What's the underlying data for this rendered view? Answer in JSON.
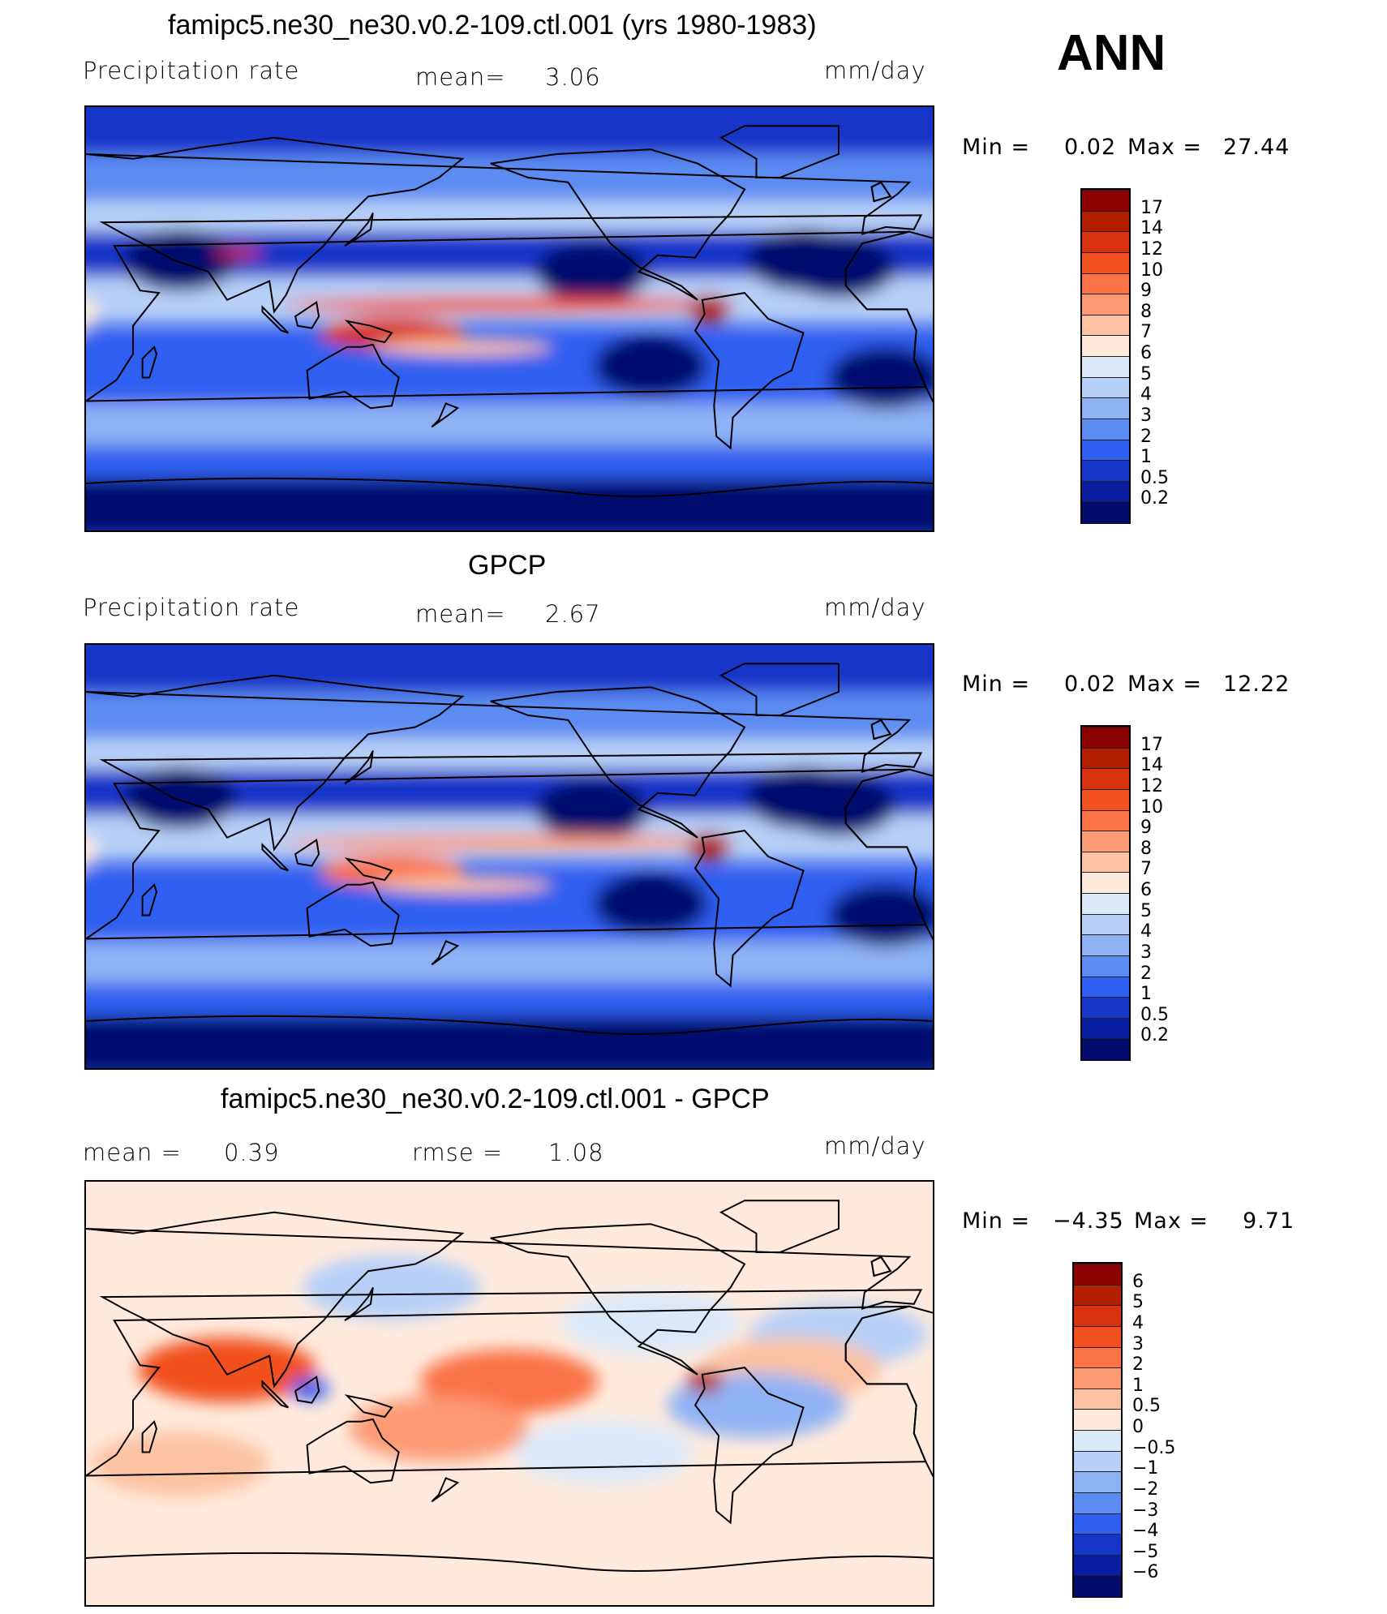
{
  "season": "ANN",
  "panels": [
    {
      "title": "famipc5.ne30_ne30.v0.2-109.ctl.001 (yrs 1980-1983)",
      "left_label": "Precipitation  rate",
      "stat1_label": "mean=",
      "stat1_value": "3.06",
      "units": "mm/day",
      "min_label": "Min  =",
      "min_value": "0.02",
      "max_label": "Max  =",
      "max_value": "27.44",
      "colorbar": [
        "17",
        "14",
        "12",
        "10",
        "9",
        "8",
        "7",
        "6",
        "5",
        "4",
        "3",
        "2",
        "1",
        "0.5",
        "0.2"
      ],
      "colors": [
        "#8b0000",
        "#b21e00",
        "#d9320f",
        "#f2501e",
        "#fa7346",
        "#fc9a73",
        "#fdc2a2",
        "#feeadd",
        "#dbe8f8",
        "#b8d0f7",
        "#8fb2f5",
        "#5c8cf2",
        "#2f5ff0",
        "#1636c9",
        "#0a1fa0",
        "#040c6e"
      ]
    },
    {
      "title": "GPCP",
      "left_label": "Precipitation  rate",
      "stat1_label": "mean=",
      "stat1_value": "2.67",
      "units": "mm/day",
      "min_label": "Min  =",
      "min_value": "0.02",
      "max_label": "Max  =",
      "max_value": "12.22",
      "colorbar": [
        "17",
        "14",
        "12",
        "10",
        "9",
        "8",
        "7",
        "6",
        "5",
        "4",
        "3",
        "2",
        "1",
        "0.5",
        "0.2"
      ],
      "colors": [
        "#8b0000",
        "#b21e00",
        "#d9320f",
        "#f2501e",
        "#fa7346",
        "#fc9a73",
        "#fdc2a2",
        "#feeadd",
        "#dbe8f8",
        "#b8d0f7",
        "#8fb2f5",
        "#5c8cf2",
        "#2f5ff0",
        "#1636c9",
        "#0a1fa0",
        "#040c6e"
      ]
    },
    {
      "title": "famipc5.ne30_ne30.v0.2-109.ctl.001 - GPCP",
      "left_label": "mean  =",
      "left_value": "0.39",
      "stat1_label": "rmse  =",
      "stat1_value": "1.08",
      "units": "mm/day",
      "min_label": "Min  =",
      "min_value": "−4.35",
      "max_label": "Max  =",
      "max_value": "9.71",
      "colorbar": [
        "6",
        "5",
        "4",
        "3",
        "2",
        "1",
        "0.5",
        "0",
        "−0.5",
        "−1",
        "−2",
        "−3",
        "−4",
        "−5",
        "−6"
      ],
      "colors": [
        "#8b0000",
        "#b21e00",
        "#d9320f",
        "#f2501e",
        "#fa7346",
        "#fc9a73",
        "#fdc2a2",
        "#feeadd",
        "#dbe8f8",
        "#b8d0f7",
        "#8fb2f5",
        "#5c8cf2",
        "#2f5ff0",
        "#1636c9",
        "#0a1fa0",
        "#040c6e"
      ]
    }
  ],
  "chart_data": [
    {
      "type": "heatmap",
      "title": "famipc5.ne30_ne30.v0.2-109.ctl.001 (yrs 1980-1983)",
      "variable": "Precipitation rate",
      "units": "mm/day",
      "mean": 3.06,
      "min": 0.02,
      "max": 27.44,
      "contour_levels": [
        0.2,
        0.5,
        1,
        2,
        3,
        4,
        5,
        6,
        7,
        8,
        9,
        10,
        12,
        14,
        17
      ]
    },
    {
      "type": "heatmap",
      "title": "GPCP",
      "variable": "Precipitation rate",
      "units": "mm/day",
      "mean": 2.67,
      "min": 0.02,
      "max": 12.22,
      "contour_levels": [
        0.2,
        0.5,
        1,
        2,
        3,
        4,
        5,
        6,
        7,
        8,
        9,
        10,
        12,
        14,
        17
      ]
    },
    {
      "type": "heatmap",
      "title": "famipc5.ne30_ne30.v0.2-109.ctl.001 - GPCP",
      "units": "mm/day",
      "mean": 0.39,
      "rmse": 1.08,
      "min": -4.35,
      "max": 9.71,
      "contour_levels": [
        -6,
        -5,
        -4,
        -3,
        -2,
        -1,
        -0.5,
        0,
        0.5,
        1,
        2,
        3,
        4,
        5,
        6
      ]
    }
  ]
}
